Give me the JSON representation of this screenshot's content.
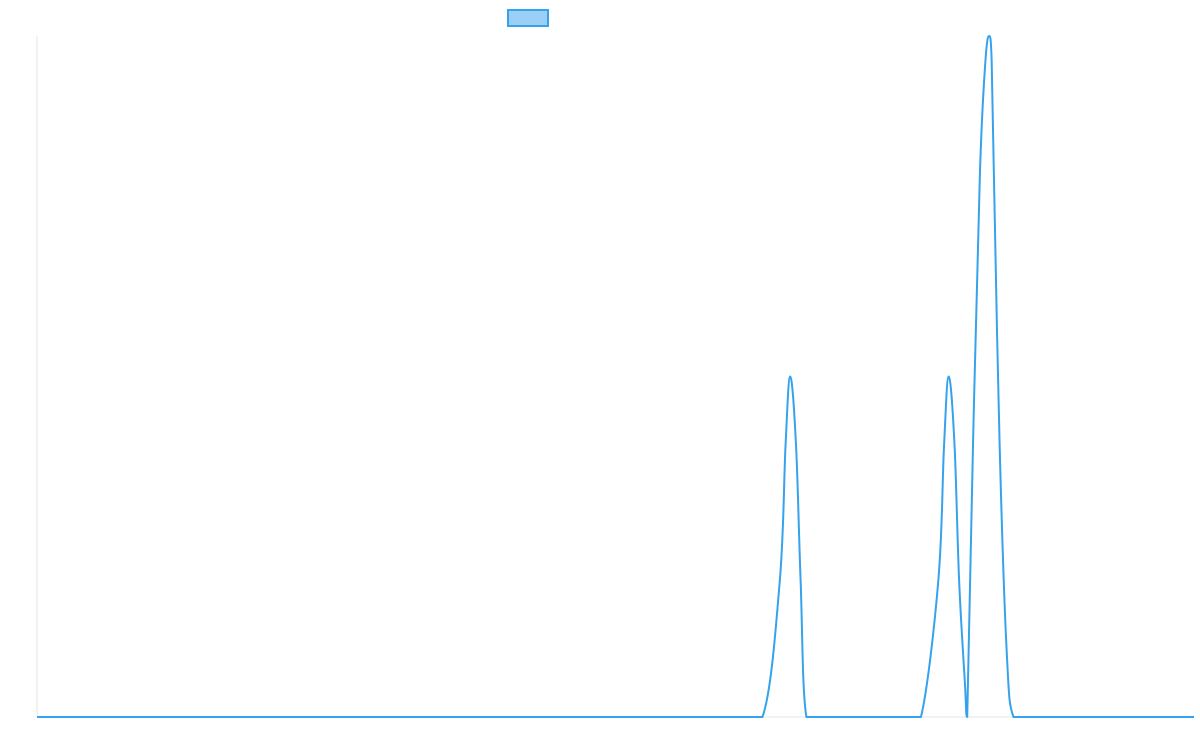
{
  "chart_data": {
    "type": "line",
    "title": "",
    "xlabel": "",
    "ylabel": "",
    "xlim": [
      0,
      100
    ],
    "ylim": [
      0,
      1
    ],
    "grid": false,
    "legend": {
      "placement": "top-center",
      "entries": [
        {
          "label": "",
          "color": "#36A2EB"
        }
      ]
    },
    "series": [
      {
        "color": "#36A2EB",
        "fill": "#9AD0F5",
        "x": [
          0,
          10,
          20,
          30,
          40,
          50,
          60,
          62.7,
          64.2,
          64.7,
          65.1,
          65.6,
          66.0,
          66.5,
          68.0,
          70,
          75,
          76.4,
          77.9,
          78.4,
          78.8,
          79.3,
          79.7,
          80.2,
          80.4,
          80.9,
          81.5,
          82.0,
          82.3,
          82.5,
          82.7,
          83.2,
          83.8,
          84.4,
          86.0,
          90,
          95,
          100
        ],
        "y": [
          0,
          0,
          0,
          0,
          0,
          0,
          0,
          0,
          0.2,
          0.4,
          0.5,
          0.4,
          0.2,
          0,
          0,
          0,
          0,
          0,
          0.2,
          0.4,
          0.5,
          0.4,
          0.2,
          0.05,
          0,
          0.4,
          0.8,
          0.97,
          1.0,
          0.97,
          0.8,
          0.4,
          0.1,
          0,
          0,
          0,
          0,
          0
        ]
      }
    ]
  }
}
